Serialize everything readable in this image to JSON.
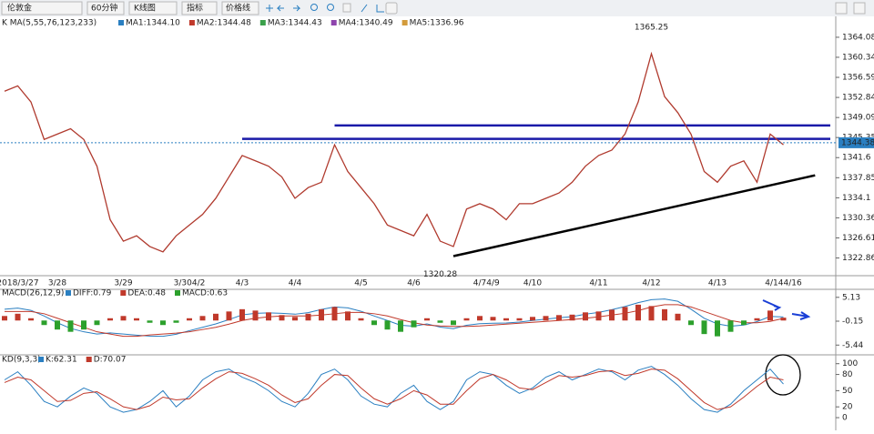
{
  "toolbar": {
    "items": [
      "伦敦金",
      "60分钟",
      "K线图",
      "指标",
      "价格线"
    ]
  },
  "chart_data": [
    {
      "type": "line",
      "title": "K  MA(5,55,76,123,233)",
      "legend": [
        {
          "label": "MA1:1344.10",
          "color": "#2a7fc1"
        },
        {
          "label": "MA2:1344.48",
          "color": "#c0392b"
        },
        {
          "label": "MA3:1344.43",
          "color": "#3aa04a"
        },
        {
          "label": "MA4:1340.49",
          "color": "#8e44ad"
        },
        {
          "label": "MA5:1336.96",
          "color": "#d39b3b"
        }
      ],
      "categories": [
        null,
        "2018/3/27",
        null,
        null,
        "3/28",
        null,
        null,
        null,
        null,
        "3/29",
        null,
        null,
        null,
        null,
        "3/304/2",
        null,
        null,
        null,
        "4/3",
        null,
        null,
        null,
        "4/4",
        null,
        null,
        null,
        null,
        "4/5",
        null,
        null,
        null,
        "4/6",
        null,
        null,
        null,
        null,
        "4/7",
        "4/9",
        null,
        null,
        "4/10",
        null,
        null,
        null,
        null,
        "4/11",
        null,
        null,
        null,
        "4/12",
        null,
        null,
        null,
        null,
        "4/13",
        null,
        null,
        null,
        null,
        "4/144/16"
      ],
      "values": [
        1354,
        1355,
        1352,
        1345,
        1346,
        1347,
        1345,
        1340,
        1330,
        1326,
        1327,
        1325,
        1324,
        1327,
        1329,
        1331,
        1334,
        1338,
        1342,
        1341,
        1340,
        1338,
        1334,
        1336,
        1337,
        1344,
        1339,
        1336,
        1333,
        1329,
        1328,
        1327,
        1331,
        1326,
        1325,
        1332,
        1333,
        1332,
        1330,
        1333,
        1333,
        1334,
        1335,
        1337,
        1340,
        1342,
        1343,
        1346,
        1352,
        1361,
        1353,
        1350,
        1346,
        1339,
        1337,
        1340,
        1341,
        1337,
        1346,
        1344
      ],
      "color": "#b03a2e",
      "ylim": [
        1320.4,
        1367.3
      ],
      "yticks": [
        1364.08,
        1360.34,
        1356.59,
        1352.84,
        1349.09,
        1345.35,
        1341.6,
        1337.85,
        1334.1,
        1330.36,
        1326.61,
        1322.86
      ],
      "high": 1365.25,
      "high_index": 49,
      "low": 1320.28,
      "low_index": 33,
      "last_price": 1344.38,
      "levels": [
        {
          "value": 1347.6,
          "from": 25
        },
        {
          "value": 1345.1,
          "from": 18
        }
      ],
      "trendline": [
        [
          34,
          1323.2
        ],
        [
          61.4,
          1338.3
        ]
      ]
    },
    {
      "type": "macd",
      "title": "MACD(26,12,9)",
      "up_color": "#c0392b",
      "down_color": "#2ca02c",
      "series": [
        {
          "name": "DIFF:0.79",
          "color": "#2a7fc1",
          "values": [
            2.5,
            2.75,
            2.25,
            1,
            -0.5,
            -1.75,
            -2.5,
            -3,
            -2.75,
            -3,
            -3.25,
            -3.45,
            -3.5,
            -3.05,
            -2.25,
            -1.5,
            -0.75,
            0.2,
            1.25,
            1.6,
            1.7,
            1.6,
            1.4,
            1.75,
            2.45,
            3,
            2.8,
            2.05,
            1,
            0,
            -1.05,
            -1.25,
            -0.75,
            -1.45,
            -1.8,
            -1.05,
            -0.7,
            -0.6,
            -0.55,
            -0.35,
            0,
            0.3,
            0.6,
            0.85,
            1.4,
            1.8,
            2.4,
            3.1,
            3.95,
            4.6,
            4.75,
            4.25,
            2.5,
            0.5,
            -0.75,
            -1.25,
            -1,
            -0.25,
            0.9,
            0.79
          ]
        },
        {
          "name": "DEA:0.48",
          "color": "#c0392b",
          "values": [
            2,
            2,
            2,
            1.5,
            0.5,
            -0.5,
            -1.5,
            -2.5,
            -3,
            -3.5,
            -3.5,
            -3.2,
            -3,
            -2.8,
            -2.5,
            -2,
            -1.5,
            -0.8,
            0,
            0.5,
            0.8,
            1,
            1,
            1,
            1.2,
            1.5,
            1.8,
            1.8,
            1.5,
            1,
            0.2,
            -0.5,
            -1,
            -1.2,
            -1.3,
            -1.3,
            -1.2,
            -1,
            -0.8,
            -0.6,
            -0.4,
            -0.2,
            0,
            0.2,
            0.5,
            0.8,
            1.2,
            1.6,
            2.2,
            3,
            3.5,
            3.5,
            3,
            2,
            1,
            0,
            -0.5,
            -0.5,
            -0.2,
            0.48
          ]
        },
        {
          "name": "MACD:0.63",
          "color": "#2ca02c",
          "type": "bar",
          "values": [
            1,
            1.5,
            0.5,
            -1,
            -2,
            -2.5,
            -2,
            -1,
            0.5,
            1,
            0.5,
            -0.5,
            -1,
            -0.5,
            0.5,
            1,
            1.5,
            2,
            2.5,
            2.2,
            1.8,
            1.2,
            0.8,
            1.5,
            2.5,
            3,
            2,
            0.5,
            -1,
            -2,
            -2.5,
            -1.5,
            0.5,
            -0.5,
            -1,
            0.5,
            1,
            0.8,
            0.5,
            0.5,
            0.8,
            1,
            1.2,
            1.3,
            1.8,
            2,
            2.4,
            3,
            3.5,
            3.2,
            2.5,
            1.5,
            -1,
            -3,
            -3.5,
            -2.5,
            -1,
            0.5,
            2.2,
            0.63
          ]
        }
      ],
      "ylim": [
        -7.6,
        6.9
      ],
      "yticks": [
        5.13,
        -0.15,
        -5.44
      ]
    },
    {
      "type": "kd",
      "title": "KD(9,3,3)",
      "series": [
        {
          "name": "K:62.31",
          "color": "#2a7fc1",
          "values": [
            70,
            85,
            60,
            30,
            20,
            40,
            55,
            45,
            20,
            10,
            15,
            30,
            50,
            20,
            40,
            70,
            85,
            90,
            75,
            65,
            50,
            30,
            20,
            45,
            80,
            90,
            70,
            40,
            25,
            20,
            45,
            60,
            30,
            15,
            30,
            70,
            85,
            80,
            60,
            45,
            55,
            75,
            85,
            70,
            80,
            90,
            85,
            70,
            88,
            95,
            80,
            60,
            35,
            15,
            10,
            25,
            50,
            70,
            90,
            62.31
          ]
        },
        {
          "name": "D:70.07",
          "color": "#c0392b",
          "values": [
            65,
            75,
            70,
            50,
            30,
            32,
            45,
            48,
            35,
            20,
            15,
            22,
            38,
            33,
            35,
            55,
            72,
            85,
            82,
            72,
            60,
            42,
            28,
            35,
            60,
            80,
            78,
            55,
            35,
            25,
            35,
            50,
            42,
            25,
            25,
            50,
            72,
            80,
            70,
            55,
            52,
            65,
            78,
            75,
            78,
            85,
            87,
            78,
            82,
            90,
            88,
            72,
            50,
            28,
            15,
            20,
            38,
            58,
            75,
            70.07
          ]
        }
      ],
      "ylim": [
        -5,
        113
      ],
      "yticks": [
        100,
        80,
        50,
        20,
        0
      ]
    }
  ]
}
